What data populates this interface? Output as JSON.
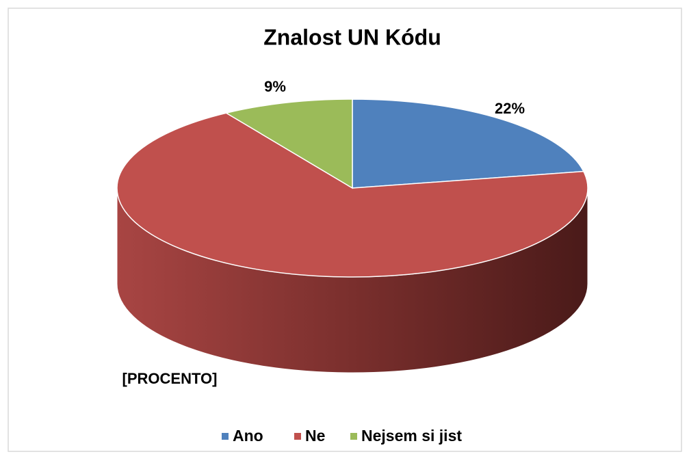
{
  "chart_data": {
    "type": "pie",
    "title": "Znalost UN Kódu",
    "categories": [
      "Ano",
      "Ne",
      "Nejsem si jist"
    ],
    "values": [
      22,
      69,
      9
    ],
    "value_labels": [
      "22%",
      "[PROCENTO]",
      "9%"
    ],
    "colors": [
      "#4f81bd",
      "#c0504d",
      "#9bbb59"
    ],
    "legend": "bottom"
  }
}
